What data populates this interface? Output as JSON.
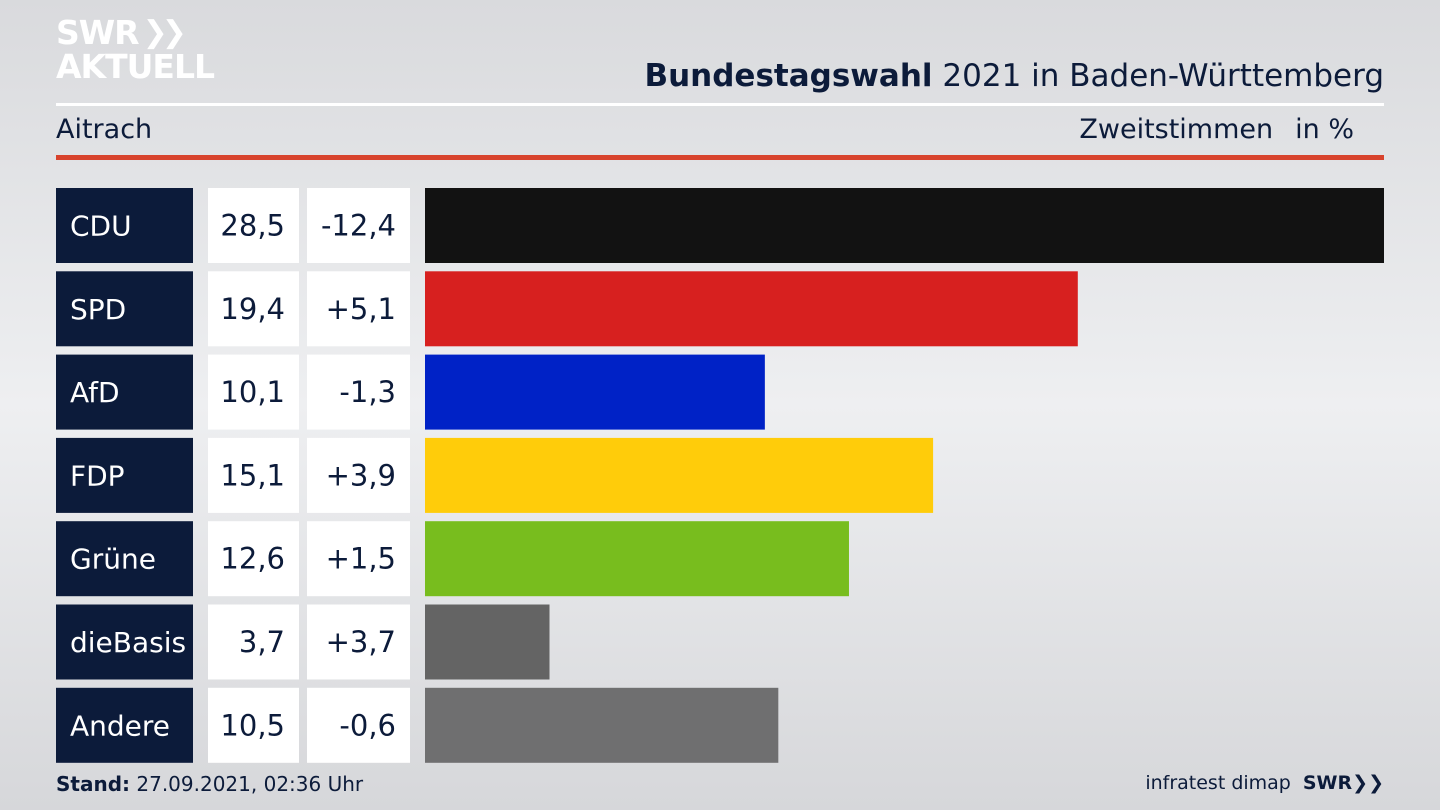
{
  "brand": {
    "line1": "SWR",
    "arrows": "❯❯",
    "line2": "AKTUELL"
  },
  "header": {
    "title_bold": "Bundestagswahl",
    "title_rest": " 2021 in Baden-Württemberg"
  },
  "subheader": {
    "region": "Aitrach",
    "vote_type": "Zweitstimmen",
    "unit": "in %"
  },
  "footer": {
    "stand_label": "Stand:",
    "stand_value": " 27.09.2021, 02:36 Uhr",
    "source": "infratest dimap",
    "logo": "SWR❯❯"
  },
  "colors": {
    "navy": "#0c1b3a",
    "accent_red": "#d8432d"
  },
  "chart_data": {
    "type": "bar",
    "orientation": "horizontal",
    "categories": [
      "CDU",
      "SPD",
      "AfD",
      "FDP",
      "Grüne",
      "dieBasis",
      "Andere"
    ],
    "values": [
      28.5,
      19.4,
      10.1,
      15.1,
      12.6,
      3.7,
      10.5
    ],
    "value_labels": [
      "28,5",
      "19,4",
      "10,1",
      "15,1",
      "12,6",
      "3,7",
      "10,5"
    ],
    "changes": [
      "-12,4",
      "+5,1",
      "-1,3",
      "+3,9",
      "+1,5",
      "+3,7",
      "-0,6"
    ],
    "bar_colors": [
      "#121212",
      "#d7201f",
      "#0022c6",
      "#ffcc0a",
      "#78bd1e",
      "#646464",
      "#6f6f70"
    ],
    "xlim": [
      0,
      28.5
    ],
    "grid": false,
    "legend": "none"
  }
}
